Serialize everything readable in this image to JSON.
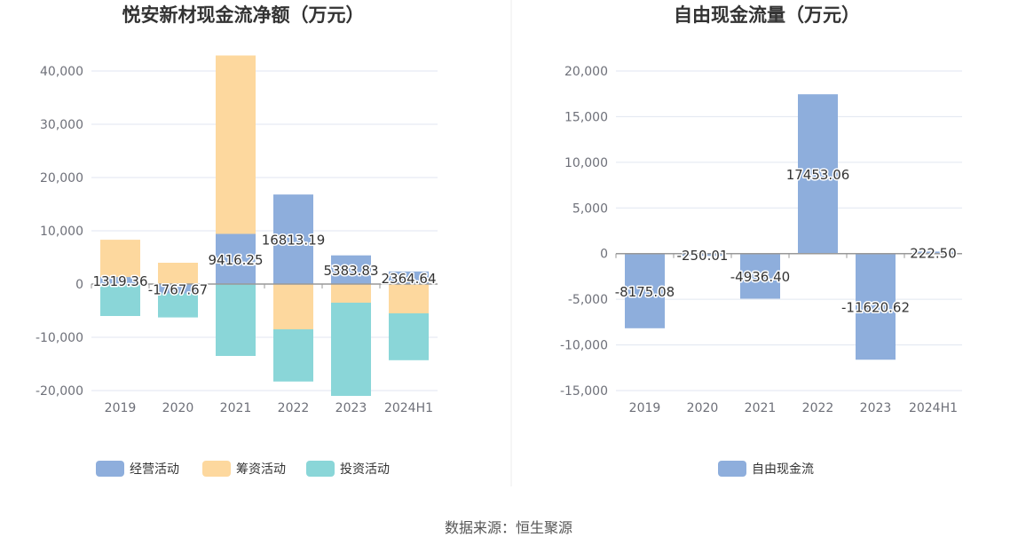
{
  "source": "数据来源：恒生聚源",
  "chart_data": [
    {
      "type": "bar",
      "stacked": true,
      "title": "悦安新材现金流净额（万元）",
      "categories": [
        "2019",
        "2020",
        "2021",
        "2022",
        "2023",
        "2024H1"
      ],
      "ylim": [
        -20000,
        40000
      ],
      "yticks": [
        40000,
        30000,
        20000,
        10000,
        0,
        -10000,
        -20000
      ],
      "ytick_labels": [
        "40,000",
        "30,000",
        "20,000",
        "10,000",
        "0",
        "-10,000",
        "-20,000"
      ],
      "grid": true,
      "legend_position": "bottom",
      "series": [
        {
          "name": "经营活动",
          "color": "#8eaedc",
          "values": [
            1319.36,
            -1767.67,
            9416.25,
            16813.19,
            5383.83,
            2364.64
          ]
        },
        {
          "name": "筹资活动",
          "color": "#fdd89e",
          "values": [
            7000,
            4000,
            33500,
            -8500,
            -3500,
            -5500
          ]
        },
        {
          "name": "投资活动",
          "color": "#8ad6d8",
          "values": [
            -6000,
            -4500,
            -13500,
            -9800,
            -17500,
            -8800
          ]
        }
      ],
      "data_labels": [
        "1319.36",
        "-1767.67",
        "9416.25",
        "16813.19",
        "5383.83",
        "2364.64"
      ]
    },
    {
      "type": "bar",
      "title": "自由现金流量（万元）",
      "categories": [
        "2019",
        "2020",
        "2021",
        "2022",
        "2023",
        "2024H1"
      ],
      "ylim": [
        -15000,
        20000
      ],
      "yticks": [
        20000,
        15000,
        10000,
        5000,
        0,
        -5000,
        -10000,
        -15000
      ],
      "ytick_labels": [
        "20,000",
        "15,000",
        "10,000",
        "5,000",
        "0",
        "-5,000",
        "-10,000",
        "-15,000"
      ],
      "grid": true,
      "legend_position": "bottom",
      "series": [
        {
          "name": "自由现金流",
          "color": "#8eaedc",
          "values": [
            -8175.08,
            -250.01,
            -4936.4,
            17453.06,
            -11620.62,
            222.5
          ]
        }
      ],
      "data_labels": [
        "-8175.08",
        "-250.01",
        "-4936.40",
        "17453.06",
        "-11620.62",
        "222.50"
      ]
    }
  ]
}
